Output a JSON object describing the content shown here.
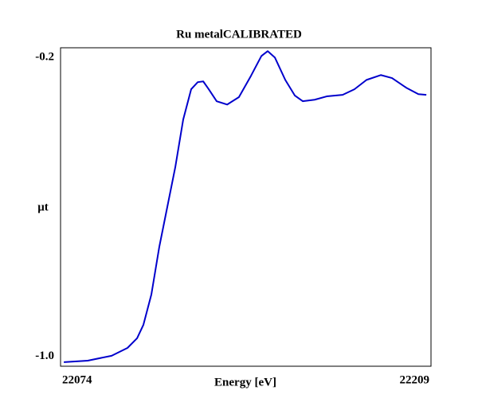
{
  "chart_data": {
    "type": "line",
    "title": "Ru metalCALIBRATED",
    "x_label": "Energy [eV]",
    "y_label": "μt",
    "x": [
      22075.2,
      22083.9,
      22092.6,
      22098.4,
      22101.9,
      22104.2,
      22107.1,
      22110.0,
      22112.9,
      22115.8,
      22118.7,
      22121.6,
      22124.0,
      22126.0,
      22128.0,
      22130.9,
      22134.7,
      22139.0,
      22143.4,
      22147.2,
      22149.5,
      22152.1,
      22155.9,
      22159.4,
      22162.3,
      22166.6,
      22171.0,
      22176.8,
      22181.1,
      22185.5,
      22190.7,
      22194.8,
      22200.0,
      22204.4,
      22207.3
    ],
    "series": [
      {
        "name": "Ru metalCALIBRATED",
        "color": "#0000cc",
        "values": [
          -1.015,
          -1.011,
          -0.998,
          -0.977,
          -0.951,
          -0.915,
          -0.834,
          -0.706,
          -0.6,
          -0.494,
          -0.366,
          -0.285,
          -0.266,
          -0.264,
          -0.285,
          -0.317,
          -0.326,
          -0.306,
          -0.249,
          -0.196,
          -0.183,
          -0.2,
          -0.26,
          -0.302,
          -0.317,
          -0.313,
          -0.304,
          -0.3,
          -0.285,
          -0.26,
          -0.247,
          -0.255,
          -0.281,
          -0.298,
          -0.3
        ]
      }
    ],
    "xlim": [
      22074,
      22209
    ],
    "xticks": [
      22074,
      22209
    ],
    "ylim": [
      -1.026,
      -0.174
    ],
    "yticks": [
      -0.2,
      {
        "value": -1,
        "label": "-1.0"
      }
    ],
    "grid": false
  }
}
